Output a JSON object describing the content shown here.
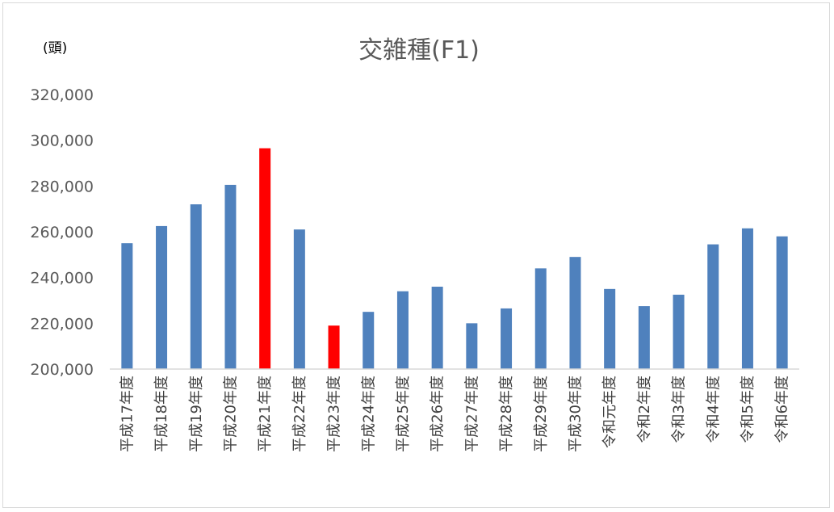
{
  "chart_data": {
    "type": "bar",
    "title": "交雑種(F1)",
    "unit_label": "(頭)",
    "categories": [
      "平成17年度",
      "平成18年度",
      "平成19年度",
      "平成20年度",
      "平成21年度",
      "平成22年度",
      "平成23年度",
      "平成24年度",
      "平成25年度",
      "平成26年度",
      "平成27年度",
      "平成28年度",
      "平成29年度",
      "平成30年度",
      "令和元年度",
      "令和2年度",
      "令和3年度",
      "令和4年度",
      "令和5年度",
      "令和6年度"
    ],
    "values": [
      255000,
      262500,
      272000,
      280500,
      296500,
      261000,
      219000,
      225000,
      234000,
      236000,
      220000,
      226500,
      244000,
      249000,
      235000,
      227500,
      232500,
      254500,
      261500,
      258000
    ],
    "bar_colors": [
      "#4f81bd",
      "#4f81bd",
      "#4f81bd",
      "#4f81bd",
      "#ff0000",
      "#4f81bd",
      "#ff0000",
      "#4f81bd",
      "#4f81bd",
      "#4f81bd",
      "#4f81bd",
      "#4f81bd",
      "#4f81bd",
      "#4f81bd",
      "#4f81bd",
      "#4f81bd",
      "#4f81bd",
      "#4f81bd",
      "#4f81bd",
      "#4f81bd"
    ],
    "ylim": [
      200000,
      320000
    ],
    "yticks": [
      200000,
      220000,
      240000,
      260000,
      280000,
      300000,
      320000
    ],
    "ytick_labels": [
      "200,000",
      "220,000",
      "240,000",
      "260,000",
      "280,000",
      "300,000",
      "320,000"
    ],
    "grid": false,
    "legend": "none"
  }
}
